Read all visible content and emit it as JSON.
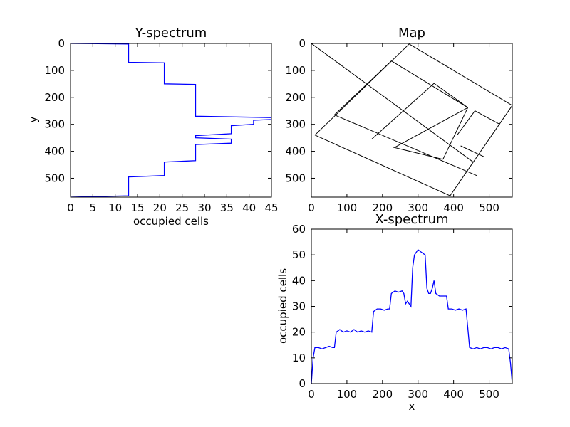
{
  "chart_data": [
    {
      "id": "y-spectrum",
      "type": "line",
      "title": "Y-spectrum",
      "xlabel": "occupied cells",
      "ylabel": "y",
      "xlim": [
        0,
        45
      ],
      "ylim": [
        0,
        570
      ],
      "y_inverted": true,
      "xticks": [
        "0",
        "5",
        "10",
        "15",
        "20",
        "25",
        "30",
        "35",
        "40",
        "45"
      ],
      "yticks": [
        "0",
        "100",
        "200",
        "300",
        "400",
        "500"
      ],
      "line_color": "#0000ff",
      "series": [
        {
          "points": [
            [
              0,
              0
            ],
            [
              13,
              2
            ],
            [
              13,
              10
            ],
            [
              13,
              20
            ],
            [
              13,
              30
            ],
            [
              13,
              40
            ],
            [
              13,
              50
            ],
            [
              13,
              60
            ],
            [
              13,
              70
            ],
            [
              21,
              72
            ],
            [
              21,
              80
            ],
            [
              21,
              90
            ],
            [
              21,
              100
            ],
            [
              21,
              110
            ],
            [
              21,
              120
            ],
            [
              21,
              130
            ],
            [
              21,
              140
            ],
            [
              21,
              150
            ],
            [
              28,
              152
            ],
            [
              28,
              160
            ],
            [
              28,
              170
            ],
            [
              28,
              180
            ],
            [
              28,
              190
            ],
            [
              28,
              200
            ],
            [
              28,
              210
            ],
            [
              28,
              220
            ],
            [
              28,
              230
            ],
            [
              28,
              240
            ],
            [
              28,
              260
            ],
            [
              28,
              270
            ],
            [
              45,
              275
            ],
            [
              45,
              282
            ],
            [
              41,
              285
            ],
            [
              41,
              292
            ],
            [
              41,
              300
            ],
            [
              36,
              305
            ],
            [
              36,
              315
            ],
            [
              36,
              325
            ],
            [
              36,
              335
            ],
            [
              28,
              342
            ],
            [
              28,
              350
            ],
            [
              36,
              355
            ],
            [
              36,
              362
            ],
            [
              36,
              370
            ],
            [
              28,
              375
            ],
            [
              28,
              385
            ],
            [
              28,
              395
            ],
            [
              28,
              405
            ],
            [
              28,
              415
            ],
            [
              28,
              425
            ],
            [
              28,
              435
            ],
            [
              21,
              440
            ],
            [
              21,
              450
            ],
            [
              21,
              460
            ],
            [
              21,
              470
            ],
            [
              21,
              480
            ],
            [
              21,
              490
            ],
            [
              13,
              495
            ],
            [
              13,
              505
            ],
            [
              13,
              515
            ],
            [
              13,
              525
            ],
            [
              13,
              535
            ],
            [
              13,
              545
            ],
            [
              13,
              555
            ],
            [
              13,
              565
            ],
            [
              0,
              570
            ]
          ]
        }
      ]
    },
    {
      "id": "map",
      "type": "diagram",
      "title": "Map",
      "xlabel": "",
      "ylabel": "",
      "xlim": [
        0,
        565
      ],
      "ylim": [
        0,
        570
      ],
      "y_inverted": true,
      "xticks": [
        "0",
        "100",
        "200",
        "300",
        "400",
        "500"
      ],
      "yticks": [
        "0",
        "100",
        "200",
        "300",
        "400",
        "500"
      ],
      "line_color": "#000000",
      "segments": [
        [
          [
            275,
            2
          ],
          [
            565,
            230
          ]
        ],
        [
          [
            565,
            230
          ],
          [
            390,
            565
          ]
        ],
        [
          [
            390,
            565
          ],
          [
            10,
            340
          ]
        ],
        [
          [
            10,
            340
          ],
          [
            275,
            2
          ]
        ],
        [
          [
            225,
            65
          ],
          [
            440,
            238
          ]
        ],
        [
          [
            440,
            238
          ],
          [
            370,
            430
          ]
        ],
        [
          [
            65,
            265
          ],
          [
            465,
            490
          ]
        ],
        [
          [
            345,
            148
          ],
          [
            170,
            355
          ]
        ],
        [
          [
            230,
            385
          ],
          [
            370,
            430
          ]
        ],
        [
          [
            225,
            65
          ],
          [
            65,
            265
          ]
        ],
        [
          [
            345,
            148
          ],
          [
            440,
            238
          ]
        ],
        [
          [
            235,
            385
          ],
          [
            440,
            238
          ]
        ],
        [
          [
            455,
            440
          ],
          [
            0,
            0
          ]
        ],
        [
          [
            460,
            250
          ],
          [
            530,
            300
          ]
        ],
        [
          [
            460,
            250
          ],
          [
            460,
            250
          ]
        ],
        [
          [
            460,
            250
          ],
          [
            410,
            340
          ]
        ],
        [
          [
            420,
            380
          ],
          [
            485,
            420
          ]
        ]
      ]
    },
    {
      "id": "x-spectrum",
      "type": "line",
      "title": "X-spectrum",
      "xlabel": "x",
      "ylabel": "occupied cells",
      "xlim": [
        0,
        565
      ],
      "ylim": [
        0,
        60
      ],
      "xticks": [
        "0",
        "100",
        "200",
        "300",
        "400",
        "500"
      ],
      "yticks": [
        "0",
        "10",
        "20",
        "30",
        "40",
        "50",
        "60"
      ],
      "line_color": "#0000ff",
      "series": [
        {
          "points": [
            [
              0,
              0
            ],
            [
              5,
              10
            ],
            [
              10,
              14
            ],
            [
              20,
              14
            ],
            [
              30,
              13.5
            ],
            [
              40,
              14
            ],
            [
              50,
              14.5
            ],
            [
              60,
              14
            ],
            [
              65,
              14
            ],
            [
              70,
              20
            ],
            [
              80,
              21
            ],
            [
              90,
              20
            ],
            [
              100,
              20.5
            ],
            [
              110,
              20
            ],
            [
              120,
              21
            ],
            [
              130,
              20
            ],
            [
              140,
              20.5
            ],
            [
              150,
              20
            ],
            [
              160,
              20.5
            ],
            [
              170,
              20
            ],
            [
              175,
              28
            ],
            [
              185,
              29
            ],
            [
              195,
              29
            ],
            [
              205,
              28.5
            ],
            [
              215,
              29
            ],
            [
              220,
              29
            ],
            [
              225,
              35
            ],
            [
              235,
              36
            ],
            [
              245,
              35.5
            ],
            [
              255,
              36
            ],
            [
              260,
              35
            ],
            [
              265,
              31
            ],
            [
              270,
              32
            ],
            [
              275,
              31
            ],
            [
              280,
              30
            ],
            [
              285,
              45
            ],
            [
              290,
              50
            ],
            [
              300,
              52
            ],
            [
              310,
              51
            ],
            [
              320,
              50
            ],
            [
              325,
              37
            ],
            [
              330,
              35
            ],
            [
              335,
              35
            ],
            [
              340,
              37
            ],
            [
              345,
              40
            ],
            [
              350,
              35
            ],
            [
              360,
              34
            ],
            [
              370,
              34
            ],
            [
              380,
              34
            ],
            [
              385,
              29
            ],
            [
              395,
              29
            ],
            [
              405,
              28.5
            ],
            [
              415,
              29
            ],
            [
              425,
              28.5
            ],
            [
              435,
              29
            ],
            [
              445,
              14
            ],
            [
              455,
              13.5
            ],
            [
              465,
              14
            ],
            [
              475,
              13.5
            ],
            [
              485,
              14
            ],
            [
              495,
              14
            ],
            [
              505,
              13.5
            ],
            [
              515,
              14
            ],
            [
              525,
              14
            ],
            [
              535,
              13.5
            ],
            [
              545,
              14
            ],
            [
              555,
              13.5
            ],
            [
              560,
              8
            ],
            [
              565,
              0
            ]
          ]
        }
      ]
    }
  ]
}
